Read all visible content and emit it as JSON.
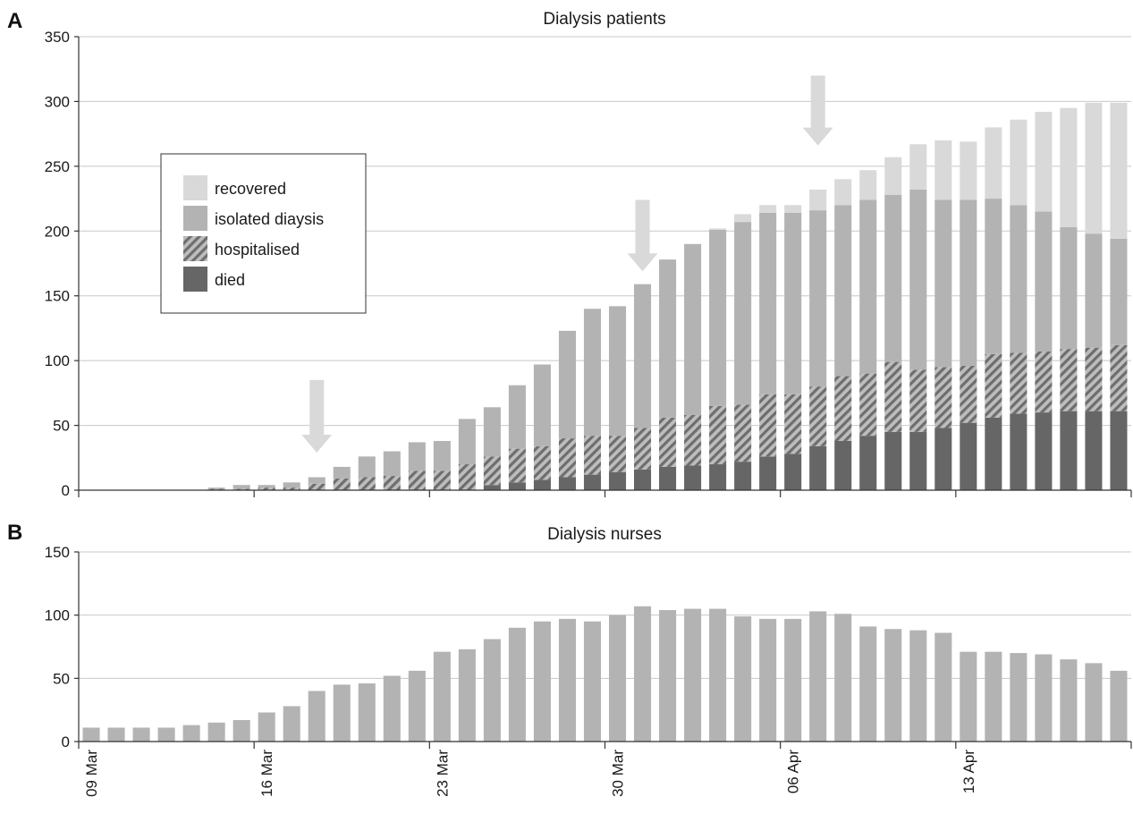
{
  "panel_a": {
    "letter": "A"
  },
  "panel_b": {
    "letter": "B"
  },
  "colors": {
    "recovered": "#d9d9d9",
    "isolated": "#b3b3b3",
    "hospitalised": "#8c8c8c",
    "died": "#666666",
    "arrow": "#d9d9d9"
  },
  "chart_data": [
    {
      "type": "bar",
      "stacked": true,
      "title": "Dialysis patients",
      "ylim": [
        0,
        350
      ],
      "yticks": [
        0,
        50,
        100,
        150,
        200,
        250,
        300,
        350
      ],
      "grid": true,
      "legend_position": "upper-left",
      "categories": [
        "09 Mar",
        "10 Mar",
        "11 Mar",
        "12 Mar",
        "13 Mar",
        "14 Mar",
        "15 Mar",
        "16 Mar",
        "17 Mar",
        "18 Mar",
        "19 Mar",
        "20 Mar",
        "21 Mar",
        "22 Mar",
        "23 Mar",
        "24 Mar",
        "25 Mar",
        "26 Mar",
        "27 Mar",
        "28 Mar",
        "29 Mar",
        "30 Mar",
        "31 Mar",
        "01 Apr",
        "02 Apr",
        "03 Apr",
        "04 Apr",
        "05 Apr",
        "06 Apr",
        "07 Apr",
        "08 Apr",
        "09 Apr",
        "10 Apr",
        "11 Apr",
        "12 Apr",
        "13 Apr",
        "14 Apr",
        "15 Apr",
        "16 Apr",
        "17 Apr",
        "18 Apr",
        "19 Apr"
      ],
      "series": [
        {
          "name": "died",
          "values": [
            0,
            0,
            0,
            0,
            0,
            0,
            0,
            0,
            0,
            0,
            0,
            0,
            0,
            0,
            0,
            0,
            4,
            6,
            8,
            10,
            12,
            14,
            16,
            18,
            19,
            20,
            22,
            26,
            28,
            34,
            38,
            42,
            45,
            45,
            48,
            52,
            56,
            59,
            60,
            61,
            61,
            61
          ]
        },
        {
          "name": "hospitalised",
          "values": [
            0,
            0,
            0,
            0,
            0,
            1,
            1,
            2,
            2,
            5,
            9,
            10,
            11,
            15,
            15,
            20,
            22,
            26,
            26,
            30,
            30,
            28,
            32,
            38,
            39,
            45,
            44,
            48,
            46,
            46,
            50,
            48,
            54,
            48,
            47,
            44,
            49,
            47,
            47,
            48,
            49,
            51
          ]
        },
        {
          "name": "isolated diaysis",
          "values": [
            0,
            0,
            0,
            0,
            0,
            1,
            3,
            2,
            4,
            5,
            9,
            16,
            19,
            22,
            23,
            35,
            38,
            49,
            63,
            83,
            98,
            100,
            111,
            122,
            132,
            136,
            141,
            140,
            140,
            136,
            132,
            134,
            129,
            139,
            129,
            128,
            120,
            114,
            108,
            94,
            88,
            82
          ]
        },
        {
          "name": "recovered",
          "values": [
            0,
            0,
            0,
            0,
            0,
            0,
            0,
            0,
            0,
            0,
            0,
            0,
            0,
            0,
            0,
            0,
            0,
            0,
            0,
            0,
            0,
            0,
            0,
            0,
            0,
            1,
            6,
            6,
            6,
            16,
            20,
            23,
            29,
            35,
            46,
            45,
            55,
            66,
            77,
            92,
            101,
            105
          ]
        }
      ],
      "legend": [
        "recovered",
        "isolated diaysis",
        "hospitalised",
        "died"
      ],
      "annotations": [
        {
          "type": "arrow-down",
          "x": "18 Mar",
          "y_from": 85,
          "y_to": 29
        },
        {
          "type": "arrow-down",
          "x": "31 Mar",
          "y_from": 224,
          "y_to": 169
        },
        {
          "type": "arrow-down",
          "x": "07 Apr",
          "y_from": 320,
          "y_to": 266
        }
      ]
    },
    {
      "type": "bar",
      "title": "Dialysis nurses",
      "ylim": [
        0,
        150
      ],
      "yticks": [
        0,
        50,
        100,
        150
      ],
      "grid": true,
      "categories": [
        "09 Mar",
        "10 Mar",
        "11 Mar",
        "12 Mar",
        "13 Mar",
        "14 Mar",
        "15 Mar",
        "16 Mar",
        "17 Mar",
        "18 Mar",
        "19 Mar",
        "20 Mar",
        "21 Mar",
        "22 Mar",
        "23 Mar",
        "24 Mar",
        "25 Mar",
        "26 Mar",
        "27 Mar",
        "28 Mar",
        "29 Mar",
        "30 Mar",
        "31 Mar",
        "01 Apr",
        "02 Apr",
        "03 Apr",
        "04 Apr",
        "05 Apr",
        "06 Apr",
        "07 Apr",
        "08 Apr",
        "09 Apr",
        "10 Apr",
        "11 Apr",
        "12 Apr",
        "13 Apr",
        "14 Apr",
        "15 Apr",
        "16 Apr",
        "17 Apr",
        "18 Apr",
        "19 Apr"
      ],
      "values": [
        11,
        11,
        11,
        11,
        13,
        15,
        17,
        23,
        28,
        40,
        45,
        46,
        52,
        56,
        71,
        73,
        81,
        90,
        95,
        97,
        95,
        100,
        107,
        104,
        105,
        105,
        99,
        97,
        97,
        103,
        101,
        91,
        89,
        88,
        86,
        71,
        71,
        70,
        69,
        65,
        62,
        56
      ],
      "xtick_labels": [
        "09 Mar",
        "16 Mar",
        "23 Mar",
        "30 Mar",
        "06 Apr",
        "13 Apr"
      ]
    }
  ]
}
